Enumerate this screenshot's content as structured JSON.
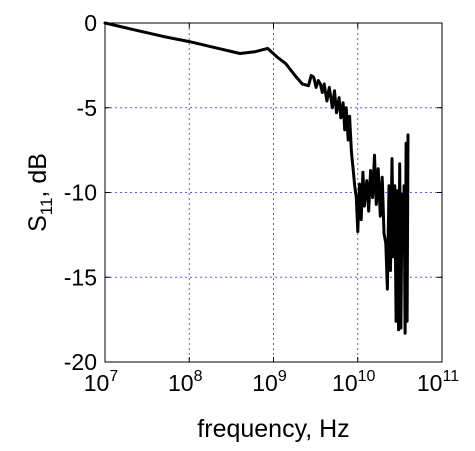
{
  "chart_data": {
    "type": "line",
    "xlabel": "frequency, Hz",
    "ylabel": "S11, dB",
    "ylabel_parts": {
      "base": "S",
      "sub": "11",
      "rest": ", dB"
    },
    "x_scale": "log",
    "xlim": [
      10000000,
      100000000000
    ],
    "ylim": [
      -20,
      0
    ],
    "x_ticks": [
      {
        "base": "10",
        "exp": "7",
        "value": 10000000
      },
      {
        "base": "10",
        "exp": "8",
        "value": 100000000
      },
      {
        "base": "10",
        "exp": "9",
        "value": 1000000000
      },
      {
        "base": "10",
        "exp": "10",
        "value": 10000000000
      },
      {
        "base": "10",
        "exp": "11",
        "value": 100000000000
      }
    ],
    "y_ticks": [
      {
        "label": "0",
        "value": 0
      },
      {
        "label": "-5",
        "value": -5
      },
      {
        "label": "-10",
        "value": -10
      },
      {
        "label": "-15",
        "value": -15
      },
      {
        "label": "-20",
        "value": -20
      }
    ],
    "grid": true,
    "grid_color": "#5a5aff",
    "line_color": "#000000",
    "series": [
      {
        "points": [
          [
            10000000.0,
            0.0
          ],
          [
            20000000.0,
            -0.35
          ],
          [
            50000000.0,
            -0.8
          ],
          [
            100000000.0,
            -1.1
          ],
          [
            200000000.0,
            -1.45
          ],
          [
            400000000.0,
            -1.8
          ],
          [
            600000000.0,
            -1.7
          ],
          [
            850000000.0,
            -1.5
          ],
          [
            1100000000.0,
            -2.0
          ],
          [
            1400000000.0,
            -2.4
          ],
          [
            1800000000.0,
            -3.1
          ],
          [
            2200000000.0,
            -3.6
          ],
          [
            2600000000.0,
            -3.7
          ],
          [
            2800000000.0,
            -3.1
          ],
          [
            3000000000.0,
            -3.2
          ],
          [
            3200000000.0,
            -3.8
          ],
          [
            3400000000.0,
            -3.4
          ],
          [
            3600000000.0,
            -3.6
          ],
          [
            3800000000.0,
            -4.1
          ],
          [
            4000000000.0,
            -3.6
          ],
          [
            4300000000.0,
            -4.6
          ],
          [
            4600000000.0,
            -3.8
          ],
          [
            5000000000.0,
            -5.0
          ],
          [
            5300000000.0,
            -4.0
          ],
          [
            5600000000.0,
            -5.3
          ],
          [
            6000000000.0,
            -4.4
          ],
          [
            6300000000.0,
            -5.6
          ],
          [
            6700000000.0,
            -4.7
          ],
          [
            7000000000.0,
            -6.3
          ],
          [
            7300000000.0,
            -5.0
          ],
          [
            7700000000.0,
            -6.9
          ],
          [
            8000000000.0,
            -5.5
          ],
          [
            8400000000.0,
            -7.6
          ],
          [
            8800000000.0,
            -8.6
          ],
          [
            9200000000.0,
            -9.6
          ],
          [
            9600000000.0,
            -10.3
          ],
          [
            10000000000.0,
            -12.3
          ],
          [
            10500000000.0,
            -9.5
          ],
          [
            11000000000.0,
            -11.6
          ],
          [
            11500000000.0,
            -8.8
          ],
          [
            12000000000.0,
            -10.8
          ],
          [
            12800000000.0,
            -9.3
          ],
          [
            13500000000.0,
            -11.1
          ],
          [
            14200000000.0,
            -8.7
          ],
          [
            15000000000.0,
            -10.3
          ],
          [
            15800000000.0,
            -7.8
          ],
          [
            16600000000.0,
            -10.7
          ],
          [
            17500000000.0,
            -8.6
          ],
          [
            18500000000.0,
            -11.4
          ],
          [
            19500000000.0,
            -9.1
          ],
          [
            20500000000.0,
            -12.4
          ],
          [
            21500000000.0,
            -13.0
          ],
          [
            22500000000.0,
            -15.7
          ],
          [
            23500000000.0,
            -9.6
          ],
          [
            24500000000.0,
            -14.6
          ],
          [
            25500000000.0,
            -8.0
          ],
          [
            26500000000.0,
            -13.8
          ],
          [
            27500000000.0,
            -9.6
          ],
          [
            28500000000.0,
            -17.6
          ],
          [
            29500000000.0,
            -9.9
          ],
          [
            30500000000.0,
            -18.1
          ],
          [
            31500000000.0,
            -8.3
          ],
          [
            32500000000.0,
            -18.0
          ],
          [
            33500000000.0,
            -10.1
          ],
          [
            34500000000.0,
            -12.8
          ],
          [
            35500000000.0,
            -9.6
          ],
          [
            36500000000.0,
            -18.3
          ],
          [
            37500000000.0,
            -7.1
          ],
          [
            38500000000.0,
            -17.6
          ],
          [
            39500000000.0,
            -6.6
          ]
        ]
      }
    ]
  }
}
